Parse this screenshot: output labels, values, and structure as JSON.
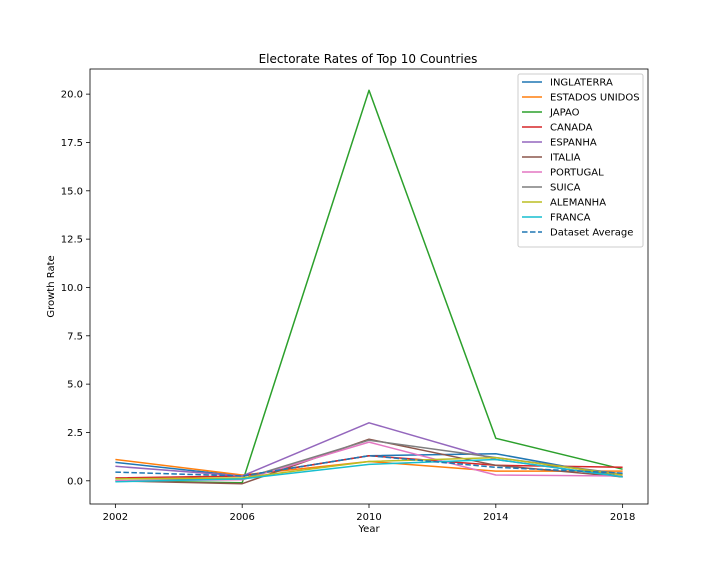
{
  "chart_data": {
    "type": "line",
    "title": "Electorate Rates of Top 10 Countries",
    "xlabel": "Year",
    "ylabel": "Growth Rate",
    "x": [
      2002,
      2006,
      2010,
      2014,
      2018
    ],
    "x_ticks": [
      "2002",
      "2006",
      "2010",
      "2014",
      "2018"
    ],
    "y_ticks": [
      "0.0",
      "2.5",
      "5.0",
      "7.5",
      "10.0",
      "12.5",
      "15.0",
      "17.5",
      "20.0"
    ],
    "xlim": [
      2001.2,
      2018.8
    ],
    "ylim": [
      -1.2,
      21.3
    ],
    "grid": false,
    "legend_position": "top-right",
    "series": [
      {
        "name": "INGLATERRA",
        "color": "#1f77b4",
        "dash": false,
        "values": [
          0.95,
          0.25,
          1.3,
          1.4,
          0.2
        ]
      },
      {
        "name": "ESTADOS UNIDOS",
        "color": "#ff7f0e",
        "dash": false,
        "values": [
          1.1,
          0.3,
          1.0,
          0.5,
          0.5
        ]
      },
      {
        "name": "JAPAO",
        "color": "#2ca02c",
        "dash": false,
        "values": [
          0.0,
          -0.1,
          20.2,
          2.2,
          0.6
        ]
      },
      {
        "name": "CANADA",
        "color": "#d62728",
        "dash": false,
        "values": [
          0.15,
          0.25,
          1.3,
          0.8,
          0.7
        ]
      },
      {
        "name": "ESPANHA",
        "color": "#9467bd",
        "dash": false,
        "values": [
          0.75,
          0.25,
          3.0,
          1.1,
          0.2
        ]
      },
      {
        "name": "ITALIA",
        "color": "#8c564b",
        "dash": false,
        "values": [
          0.0,
          -0.15,
          2.15,
          0.8,
          0.2
        ]
      },
      {
        "name": "PORTUGAL",
        "color": "#e377c2",
        "dash": false,
        "values": [
          0.0,
          0.05,
          2.0,
          0.3,
          0.25
        ]
      },
      {
        "name": "SUICA",
        "color": "#7f7f7f",
        "dash": false,
        "values": [
          0.1,
          0.1,
          2.1,
          1.2,
          0.35
        ]
      },
      {
        "name": "ALEMANHA",
        "color": "#bcbd22",
        "dash": false,
        "values": [
          0.1,
          0.15,
          1.0,
          1.2,
          0.3
        ]
      },
      {
        "name": "FRANCA",
        "color": "#17becf",
        "dash": false,
        "values": [
          -0.05,
          0.1,
          0.85,
          1.1,
          0.2
        ]
      },
      {
        "name": "Dataset Average",
        "color": "#1f77b4",
        "dash": true,
        "values": [
          0.45,
          0.25,
          1.3,
          0.7,
          0.4
        ]
      }
    ]
  }
}
